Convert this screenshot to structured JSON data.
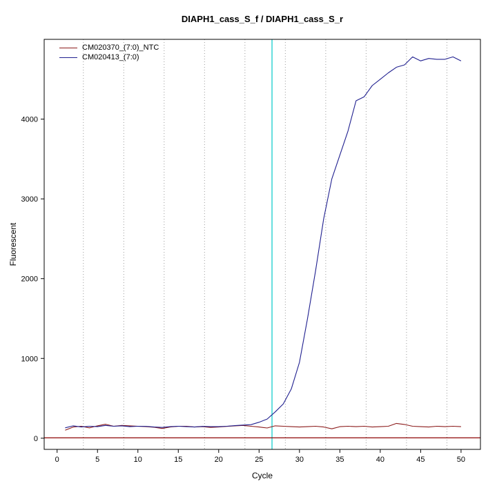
{
  "figure": {
    "background": "#ffffff",
    "axis_color": "#000000"
  },
  "chart_data": {
    "type": "line",
    "title": "DIAPH1_cass_S_f / DIAPH1_cass_S_r",
    "xlabel": "Cycle",
    "ylabel": "Fluorescent",
    "xlim": [
      -1.6,
      52.4
    ],
    "ylim": [
      -140,
      5000
    ],
    "x_ticks": [
      0,
      5,
      10,
      15,
      20,
      25,
      30,
      35,
      40,
      45,
      50
    ],
    "y_ticks": [
      0,
      1000,
      2000,
      3000,
      4000
    ],
    "x_gridlines": [
      3.25,
      8.25,
      13.25,
      18.25,
      23.25,
      28.25,
      33.25,
      38.25,
      43.25,
      48.25
    ],
    "grid_color": "#999999",
    "legend_position": "top-left",
    "x": [
      1,
      2,
      3,
      4,
      5,
      6,
      7,
      8,
      9,
      10,
      11,
      12,
      13,
      14,
      15,
      16,
      17,
      18,
      19,
      20,
      21,
      22,
      23,
      24,
      25,
      26,
      27,
      28,
      29,
      30,
      31,
      32,
      33,
      34,
      35,
      36,
      37,
      38,
      39,
      40,
      41,
      42,
      43,
      44,
      45,
      46,
      47,
      48,
      49,
      50
    ],
    "series": [
      {
        "name": "CM020370_(7:0)_NTC",
        "color": "#8b1a1a",
        "values": [
          100,
          140,
          150,
          130,
          155,
          175,
          150,
          160,
          155,
          150,
          145,
          138,
          122,
          140,
          150,
          150,
          140,
          145,
          135,
          140,
          148,
          155,
          160,
          150,
          140,
          128,
          155,
          150,
          145,
          140,
          145,
          150,
          140,
          118,
          145,
          150,
          145,
          150,
          140,
          145,
          150,
          185,
          172,
          150,
          145,
          140,
          150,
          145,
          150,
          145
        ]
      },
      {
        "name": "CM020413_(7:0)",
        "color": "#1f1f8f",
        "values": [
          130,
          155,
          140,
          150,
          145,
          160,
          150,
          155,
          145,
          150,
          148,
          140,
          135,
          145,
          150,
          145,
          140,
          148,
          145,
          145,
          150,
          158,
          165,
          170,
          200,
          240,
          330,
          430,
          620,
          950,
          1500,
          2100,
          2750,
          3250,
          3550,
          3850,
          4230,
          4280,
          4420,
          4500,
          4580,
          4650,
          4680,
          4780,
          4730,
          4760,
          4750,
          4750,
          4780,
          4730
        ]
      }
    ],
    "threshold_line": {
      "y": 5,
      "color": "#8b0000"
    },
    "ct_line": {
      "x": 26.6,
      "color": "#00c8c8"
    }
  }
}
